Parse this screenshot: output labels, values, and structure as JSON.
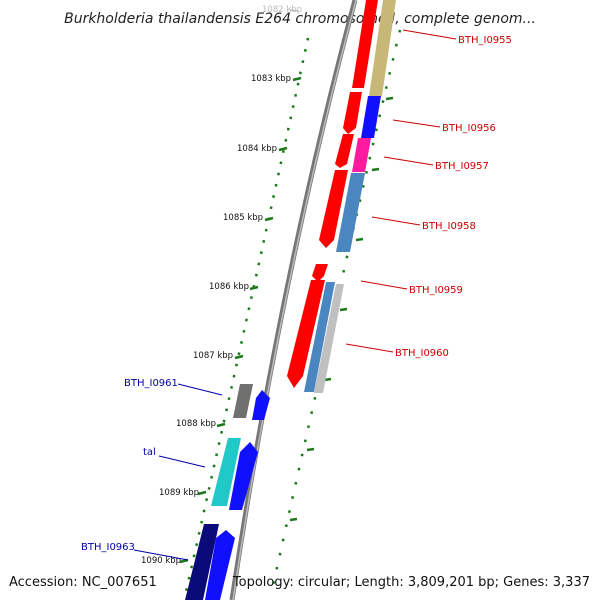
{
  "title": "Burkholderia thailandensis E264 chromosome I, complete genom...",
  "footer": {
    "accession": "Accession: NC_007651",
    "topology": "Topology: circular; Length: 3,809,201 bp; Genes: 3,337"
  },
  "colors": {
    "backbone": "#8a8a8a",
    "scale_tick": "#1a7a1a",
    "label_forward": "#cc0000",
    "label_reverse": "#0000aa",
    "red": "#ff0000",
    "blue": "#1010ff",
    "navy": "#0a0a78",
    "magenta": "#ff1aa0",
    "steelblue": "#4a86c0",
    "khaki": "#c8b878",
    "cyan": "#20c8c8",
    "grey": "#707070",
    "silver": "#c0c0c0"
  },
  "scale_labels": [
    "1082 kbp",
    "1083 kbp",
    "1084 kbp",
    "1085 kbp",
    "1086 kbp",
    "1087 kbp",
    "1088 kbp",
    "1089 kbp",
    "1090 kbp"
  ],
  "gene_labels": {
    "right": [
      "BTH_I0955",
      "BTH_I0956",
      "BTH_I0957",
      "BTH_I0958",
      "BTH_I0959",
      "BTH_I0960"
    ],
    "left": [
      "BTH_I0961",
      "tal",
      "BTH_I0963"
    ]
  }
}
